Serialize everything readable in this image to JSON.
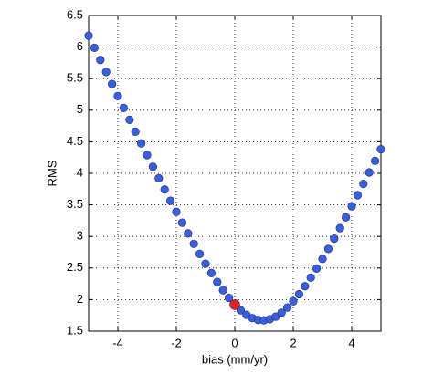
{
  "chart_data": {
    "type": "scatter",
    "xlabel": "bias (mm/yr)",
    "ylabel": "RMS",
    "xlim": [
      -5,
      5
    ],
    "ylim": [
      1.5,
      6.5
    ],
    "xticks": [
      -4,
      -2,
      0,
      2,
      4
    ],
    "yticks": [
      1.5,
      2,
      2.5,
      3,
      3.5,
      4,
      4.5,
      5,
      5.5,
      6,
      6.5
    ],
    "grid": true,
    "series": [
      {
        "color": "#3a5fd9",
        "x": [
          -5,
          -4.8,
          -4.6,
          -4.4,
          -4.2,
          -4,
          -3.8,
          -3.6,
          -3.4,
          -3.2,
          -3,
          -2.8,
          -2.6,
          -2.4,
          -2.2,
          -2,
          -1.8,
          -1.6,
          -1.4,
          -1.2,
          -1,
          -0.8,
          -0.6,
          -0.4,
          -0.2,
          0,
          0.2,
          0.4,
          0.6,
          0.8,
          1,
          1.2,
          1.4,
          1.6,
          1.8,
          2,
          2.2,
          2.4,
          2.6,
          2.8,
          3,
          3.2,
          3.4,
          3.6,
          3.8,
          4,
          4.2,
          4.4,
          4.6,
          4.8,
          5
        ],
        "values": [
          6.18,
          5.988,
          5.796,
          5.605,
          5.414,
          5.224,
          5.035,
          4.847,
          4.66,
          4.474,
          4.289,
          4.105,
          3.923,
          3.743,
          3.565,
          3.39,
          3.218,
          3.048,
          2.883,
          2.723,
          2.568,
          2.419,
          2.279,
          2.148,
          2.028,
          1.922,
          1.831,
          1.759,
          1.707,
          1.677,
          1.671,
          1.689,
          1.73,
          1.792,
          1.874,
          1.973,
          2.086,
          2.212,
          2.348,
          2.492,
          2.644,
          2.802,
          2.965,
          3.132,
          3.303,
          3.477,
          3.654,
          3.833,
          4.014,
          4.197,
          4.381
        ]
      },
      {
        "color": "#e8201a",
        "x": [
          0
        ],
        "values": [
          1.92
        ]
      }
    ]
  }
}
